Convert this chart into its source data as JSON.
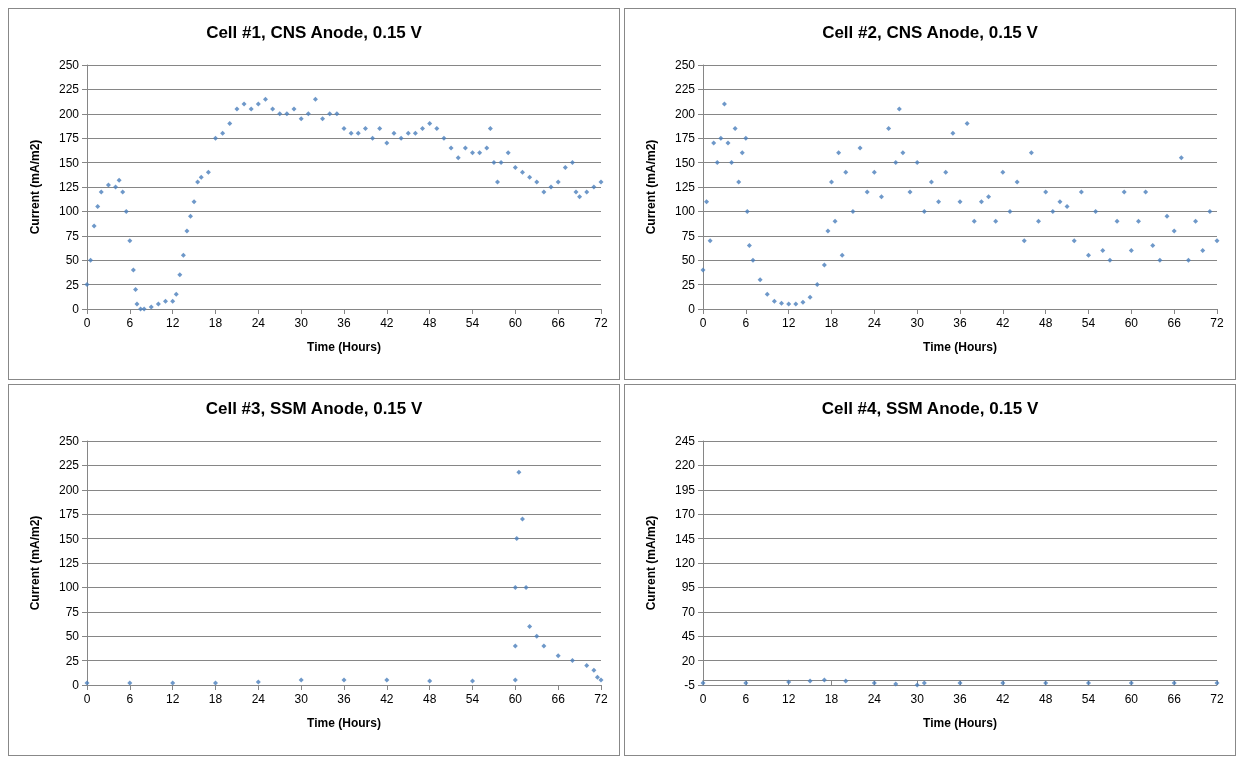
{
  "chart_data": [
    {
      "type": "scatter",
      "title": "Cell #1, CNS Anode, 0.15 V",
      "xlabel": "Time (Hours)",
      "ylabel": "Current (mA/m2)",
      "color": "#4a7ebb",
      "marker": "diamond",
      "grid": "y",
      "xlim": [
        0,
        72
      ],
      "xticks": [
        0,
        6,
        12,
        18,
        24,
        30,
        36,
        42,
        48,
        54,
        60,
        66,
        72
      ],
      "ylim": [
        0,
        250
      ],
      "yticks": [
        0,
        25,
        50,
        75,
        100,
        125,
        150,
        175,
        200,
        225,
        250
      ],
      "x": [
        0,
        0.5,
        1,
        1.5,
        2,
        3,
        4,
        4.5,
        5,
        5.5,
        6,
        6.5,
        6.8,
        7,
        7.5,
        8,
        9,
        10,
        11,
        12,
        12.5,
        13,
        13.5,
        14,
        14.5,
        15,
        15.5,
        16,
        17,
        18,
        19,
        20,
        21,
        22,
        23,
        24,
        25,
        26,
        27,
        28,
        29,
        30,
        31,
        32,
        33,
        34,
        35,
        36,
        37,
        38,
        39,
        40,
        41,
        42,
        43,
        44,
        45,
        46,
        47,
        48,
        49,
        50,
        51,
        52,
        53,
        54,
        55,
        56,
        56.5,
        57,
        57.5,
        58,
        59,
        60,
        61,
        62,
        63,
        64,
        65,
        66,
        67,
        68,
        68.5,
        69,
        70,
        71,
        72
      ],
      "values": [
        25,
        50,
        85,
        105,
        120,
        127,
        125,
        132,
        120,
        100,
        70,
        40,
        20,
        5,
        0,
        0,
        2,
        5,
        8,
        8,
        15,
        35,
        55,
        80,
        95,
        110,
        130,
        135,
        140,
        175,
        180,
        190,
        205,
        210,
        205,
        210,
        215,
        205,
        200,
        200,
        205,
        195,
        200,
        215,
        195,
        200,
        200,
        185,
        180,
        180,
        185,
        175,
        185,
        170,
        180,
        175,
        180,
        180,
        185,
        190,
        185,
        175,
        165,
        155,
        165,
        160,
        160,
        165,
        185,
        150,
        130,
        150,
        160,
        145,
        140,
        135,
        130,
        120,
        125,
        130,
        145,
        150,
        120,
        115,
        120,
        125,
        130
      ]
    },
    {
      "type": "scatter",
      "title": "Cell #2, CNS Anode, 0.15 V",
      "xlabel": "Time (Hours)",
      "ylabel": "Current (mA/m2)",
      "color": "#4a7ebb",
      "marker": "diamond",
      "grid": "y",
      "xlim": [
        0,
        72
      ],
      "xticks": [
        0,
        6,
        12,
        18,
        24,
        30,
        36,
        42,
        48,
        54,
        60,
        66,
        72
      ],
      "ylim": [
        0,
        250
      ],
      "yticks": [
        0,
        25,
        50,
        75,
        100,
        125,
        150,
        175,
        200,
        225,
        250
      ],
      "x": [
        0,
        0.5,
        1,
        1.5,
        2,
        2.5,
        3,
        3.5,
        4,
        4.5,
        5,
        5.5,
        6,
        6.2,
        6.5,
        7,
        8,
        9,
        10,
        11,
        12,
        13,
        14,
        15,
        16,
        17,
        17.5,
        18,
        18.5,
        19,
        19.5,
        20,
        21,
        22,
        23,
        24,
        25,
        26,
        27,
        27.5,
        28,
        29,
        30,
        31,
        32,
        33,
        34,
        35,
        36,
        37,
        38,
        39,
        40,
        41,
        42,
        43,
        44,
        45,
        46,
        47,
        48,
        49,
        50,
        51,
        52,
        53,
        54,
        55,
        56,
        57,
        58,
        59,
        60,
        61,
        62,
        63,
        64,
        65,
        66,
        67,
        68,
        69,
        70,
        71,
        72
      ],
      "values": [
        40,
        110,
        70,
        170,
        150,
        175,
        210,
        170,
        150,
        185,
        130,
        160,
        175,
        100,
        65,
        50,
        30,
        15,
        8,
        6,
        5,
        5,
        7,
        12,
        25,
        45,
        80,
        130,
        90,
        160,
        55,
        140,
        100,
        165,
        120,
        140,
        115,
        185,
        150,
        205,
        160,
        120,
        150,
        100,
        130,
        110,
        140,
        180,
        110,
        190,
        90,
        110,
        115,
        90,
        140,
        100,
        130,
        70,
        160,
        90,
        120,
        100,
        110,
        105,
        70,
        120,
        55,
        100,
        60,
        50,
        90,
        120,
        60,
        90,
        120,
        65,
        50,
        95,
        80,
        155,
        50,
        90,
        60,
        100,
        70
      ]
    },
    {
      "type": "scatter",
      "title": "Cell #3, SSM Anode, 0.15 V",
      "xlabel": "Time (Hours)",
      "ylabel": "Current (mA/m2)",
      "color": "#4a7ebb",
      "marker": "diamond",
      "grid": "y",
      "xlim": [
        0,
        72
      ],
      "xticks": [
        0,
        6,
        12,
        18,
        24,
        30,
        36,
        42,
        48,
        54,
        60,
        66,
        72
      ],
      "ylim": [
        0,
        250
      ],
      "yticks": [
        0,
        25,
        50,
        75,
        100,
        125,
        150,
        175,
        200,
        225,
        250
      ],
      "x": [
        0,
        6,
        12,
        18,
        24,
        30,
        36,
        42,
        48,
        54,
        60,
        60,
        60,
        60.2,
        60.5,
        61,
        61.5,
        62,
        63,
        64,
        66,
        68,
        70,
        71,
        71.5,
        72
      ],
      "values": [
        2,
        2,
        2,
        2,
        3,
        5,
        5,
        5,
        4,
        4,
        5,
        40,
        100,
        150,
        218,
        170,
        100,
        60,
        50,
        40,
        30,
        25,
        20,
        15,
        8,
        5
      ]
    },
    {
      "type": "scatter",
      "title": "Cell #4, SSM Anode, 0.15 V",
      "xlabel": "Time (Hours)",
      "ylabel": "Current (mA/m2)",
      "color": "#4a7ebb",
      "marker": "diamond",
      "grid": "y",
      "xlim": [
        0,
        72
      ],
      "xticks": [
        0,
        6,
        12,
        18,
        24,
        30,
        36,
        42,
        48,
        54,
        60,
        66,
        72
      ],
      "ylim": [
        -5,
        245
      ],
      "yticks": [
        -5,
        20,
        45,
        70,
        95,
        120,
        145,
        170,
        195,
        220,
        245
      ],
      "x": [
        0,
        6,
        12,
        15,
        17,
        20,
        24,
        27,
        30,
        31,
        36,
        42,
        48,
        54,
        60,
        66,
        72
      ],
      "values": [
        -3,
        -3,
        -2,
        -1,
        0,
        -1,
        -3,
        -4,
        -5,
        -3,
        -3,
        -3,
        -3,
        -3,
        -3,
        -3,
        -3
      ]
    }
  ]
}
